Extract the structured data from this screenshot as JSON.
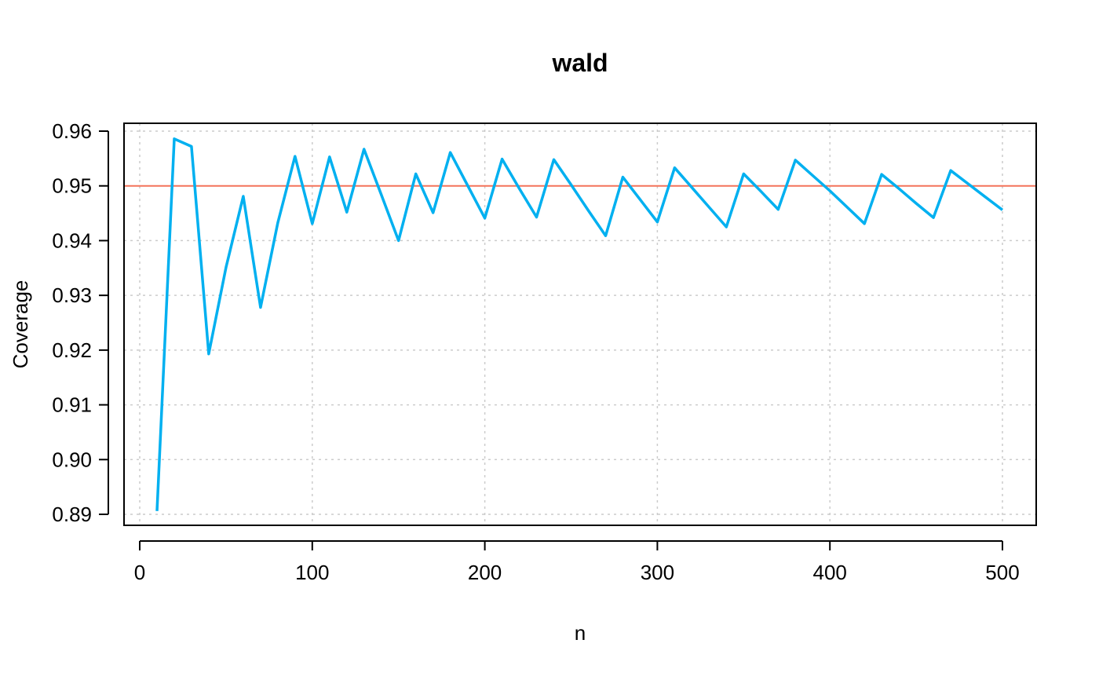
{
  "chart_data": {
    "type": "line",
    "title": "wald",
    "xlabel": "n",
    "ylabel": "Coverage",
    "xlim": [
      0,
      500
    ],
    "ylim": [
      0.89,
      0.96
    ],
    "x_ticks": [
      0,
      100,
      200,
      300,
      400,
      500
    ],
    "x_tick_labels": [
      "0",
      "100",
      "200",
      "300",
      "400",
      "500"
    ],
    "y_ticks": [
      0.89,
      0.9,
      0.91,
      0.92,
      0.93,
      0.94,
      0.95,
      0.96
    ],
    "y_tick_labels": [
      "0.89",
      "0.90",
      "0.91",
      "0.92",
      "0.93",
      "0.94",
      "0.95",
      "0.96"
    ],
    "grid": true,
    "reference_line": {
      "y": 0.95,
      "color": "#f4735a"
    },
    "series": [
      {
        "color": "#00b0f0",
        "x": [
          10,
          20,
          30,
          40,
          50,
          60,
          70,
          80,
          90,
          100,
          110,
          120,
          130,
          140,
          150,
          160,
          170,
          180,
          190,
          200,
          210,
          220,
          230,
          240,
          250,
          260,
          270,
          280,
          290,
          300,
          310,
          320,
          330,
          340,
          350,
          360,
          370,
          380,
          390,
          400,
          410,
          420,
          430,
          440,
          450,
          460,
          470,
          480,
          490,
          500
        ],
        "y": [
          0.8906,
          0.9586,
          0.9572,
          0.9193,
          0.9351,
          0.9481,
          0.9278,
          0.9432,
          0.9554,
          0.9431,
          0.9553,
          0.9452,
          0.9567,
          0.9484,
          0.94,
          0.9522,
          0.9451,
          0.9561,
          0.9501,
          0.9441,
          0.9549,
          0.9495,
          0.9443,
          0.9548,
          0.9502,
          0.9455,
          0.9409,
          0.9516,
          0.9475,
          0.9434,
          0.9533,
          0.9497,
          0.9461,
          0.9425,
          0.9522,
          0.949,
          0.9457,
          0.9547,
          0.9519,
          0.9491,
          0.9461,
          0.9431,
          0.9521,
          0.9495,
          0.9468,
          0.9442,
          0.9528,
          0.9504,
          0.948,
          0.9456
        ]
      }
    ]
  }
}
